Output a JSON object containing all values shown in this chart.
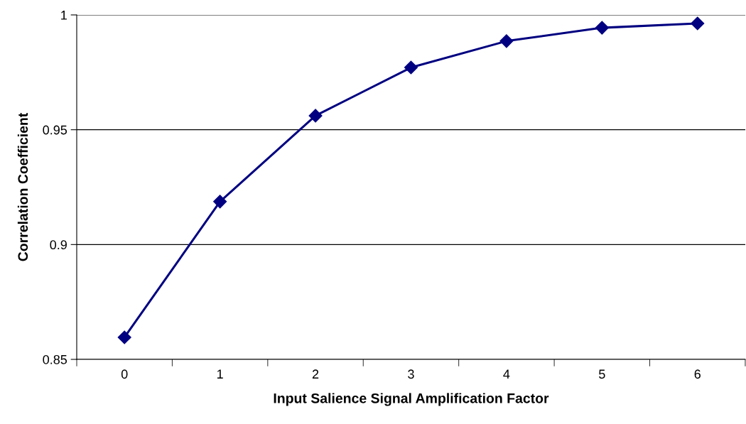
{
  "chart_data": {
    "type": "line",
    "xlabel": "Input Salience Signal Amplification Factor",
    "ylabel": "Correlation Coefficient",
    "categories": [
      "0",
      "1",
      "2",
      "3",
      "4",
      "5",
      "6"
    ],
    "series": [
      {
        "color": "#000080",
        "values": [
          0.8596,
          0.9187,
          0.9561,
          0.9771,
          0.9886,
          0.9944,
          0.9963
        ]
      }
    ],
    "ylim": [
      0.85,
      1
    ],
    "yticks": [
      0.85,
      0.9,
      0.95,
      1
    ],
    "grid": "y",
    "marker": "diamond",
    "line_style": "solid"
  }
}
